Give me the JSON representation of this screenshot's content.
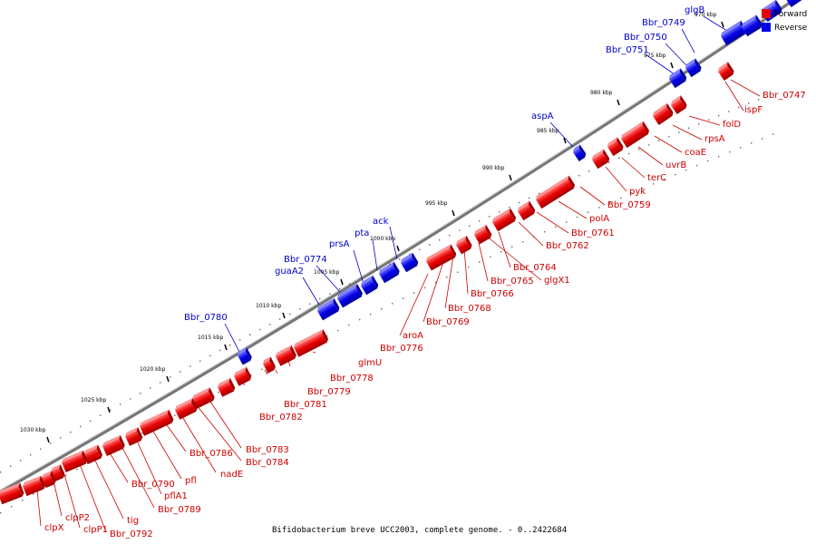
{
  "caption": "Bifidobacterium breve UCC2003, complete genome. - 0..2422684",
  "legend": [
    {
      "label": "Forward",
      "color": "#e80000"
    },
    {
      "label": "Reverse",
      "color": "#0000e8"
    }
  ],
  "colors": {
    "forward": "#e80000",
    "reverse": "#0000e8",
    "backbone": "#808080",
    "forward_label": "#cc0000",
    "reverse_label": "#0000cc"
  },
  "ticks": [
    "970 kbp",
    "975 kbp",
    "980 kbp",
    "985 kbp",
    "990 kbp",
    "995 kbp",
    "1000 kbp",
    "1005 kbp",
    "1010 kbp",
    "1015 kbp",
    "1020 kbp",
    "1025 kbp",
    "1030 kbp"
  ],
  "reverse_labels": [
    "glgB",
    "Bbr_0749",
    "Bbr_0750",
    "Bbr_0751",
    "aspA",
    "ack",
    "pta",
    "prsA",
    "Bbr_0774",
    "guaA2",
    "Bbr_0780"
  ],
  "forward_labels": [
    "Bbr_0747",
    "ispF",
    "folD",
    "rpsA",
    "coaE",
    "uvrB",
    "terC",
    "pyk",
    "Bbr_0759",
    "polA",
    "Bbr_0761",
    "Bbr_0762",
    "Bbr_0764",
    "glgX1",
    "Bbr_0765",
    "Bbr_0766",
    "Bbr_0768",
    "Bbr_0769",
    "aroA",
    "Bbr_0776",
    "glmU",
    "Bbr_0778",
    "Bbr_0779",
    "Bbr_0781",
    "Bbr_0782",
    "Bbr_0783",
    "Bbr_0784",
    "nadE",
    "Bbr_0786",
    "pfl",
    "pflA1",
    "Bbr_0789",
    "Bbr_0790",
    "tig",
    "Bbr_0792",
    "clpP1",
    "clpP2",
    "clpX"
  ]
}
